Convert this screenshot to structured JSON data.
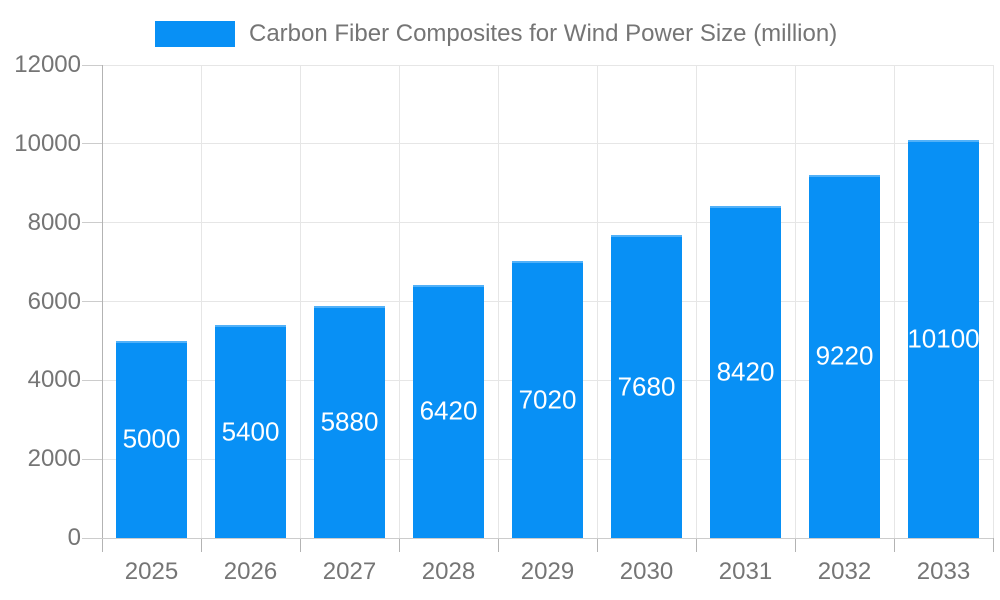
{
  "legend": {
    "label": "Carbon Fiber Composites for Wind Power Size (million)"
  },
  "chart_data": {
    "type": "bar",
    "title": "Carbon Fiber Composites for Wind Power Size (million)",
    "categories": [
      "2025",
      "2026",
      "2027",
      "2028",
      "2029",
      "2030",
      "2031",
      "2032",
      "2033"
    ],
    "values": [
      5000,
      5400,
      5880,
      6420,
      7020,
      7680,
      8420,
      9220,
      10100
    ],
    "xlabel": "",
    "ylabel": "",
    "ylim": [
      0,
      12000
    ],
    "yticks": [
      0,
      2000,
      4000,
      6000,
      8000,
      10000,
      12000
    ],
    "grid": true,
    "legend_position": "top",
    "value_labels": "inside-center",
    "colors": {
      "bar": "#0890f5",
      "bar_label_text": "#ffffff",
      "axis_text": "#757575",
      "gridline": "#e6e6e6",
      "axis_line": "#b3b3b3"
    }
  }
}
